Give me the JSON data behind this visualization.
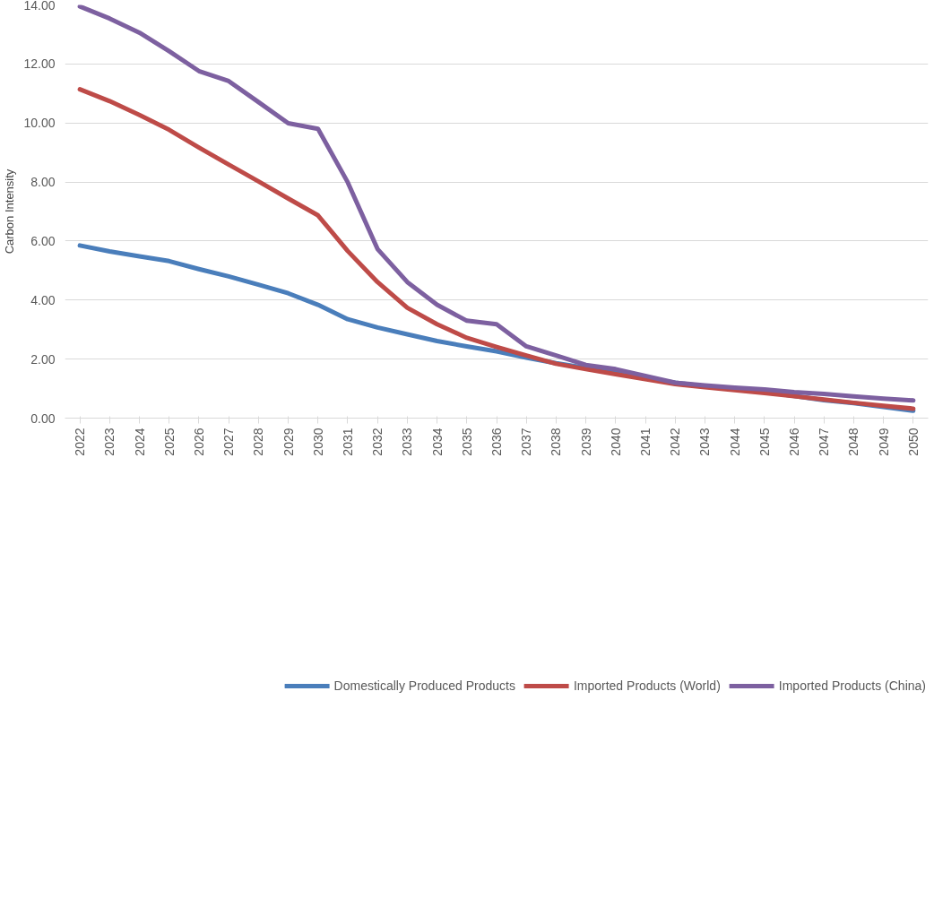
{
  "chart_data": {
    "type": "line",
    "ylabel": "Carbon Intensity",
    "categories": [
      "2022",
      "2023",
      "2024",
      "2025",
      "2026",
      "2027",
      "2028",
      "2029",
      "2030",
      "2031",
      "2032",
      "2033",
      "2034",
      "2035",
      "2036",
      "2037",
      "2038",
      "2039",
      "2040",
      "2041",
      "2042",
      "2043",
      "2044",
      "2045",
      "2046",
      "2047",
      "2048",
      "2049",
      "2050"
    ],
    "ylim": [
      0,
      14
    ],
    "yticks": [
      {
        "value": 0,
        "label": "0.00"
      },
      {
        "value": 2,
        "label": "2.00"
      },
      {
        "value": 4,
        "label": "4.00"
      },
      {
        "value": 6,
        "label": "6.00"
      },
      {
        "value": 8,
        "label": "8.00"
      },
      {
        "value": 10,
        "label": "10.00"
      },
      {
        "value": 12,
        "label": "12.00"
      },
      {
        "value": 14,
        "label": "14.00"
      }
    ],
    "grid": "y",
    "legend": "bottom",
    "line_style": "solid",
    "marker": "none",
    "series": [
      {
        "name": "Domestically Produced Products",
        "color": "#4a7ebb",
        "values": [
          5.85,
          5.65,
          5.48,
          5.32,
          5.05,
          4.8,
          4.52,
          4.23,
          3.84,
          3.35,
          3.07,
          2.84,
          2.61,
          2.43,
          2.26,
          2.05,
          1.86,
          1.7,
          1.54,
          1.35,
          1.2,
          1.08,
          0.98,
          0.89,
          0.75,
          0.61,
          0.51,
          0.38,
          0.25
        ]
      },
      {
        "name": "Imported Products (World)",
        "color": "#be4b48",
        "values": [
          11.14,
          10.74,
          10.27,
          9.77,
          9.17,
          8.59,
          8.02,
          7.44,
          6.87,
          5.66,
          4.61,
          3.74,
          3.18,
          2.72,
          2.41,
          2.12,
          1.84,
          1.66,
          1.49,
          1.32,
          1.15,
          1.05,
          0.95,
          0.85,
          0.74,
          0.63,
          0.52,
          0.42,
          0.32
        ]
      },
      {
        "name": "Imported Products (China)",
        "color": "#7d60a0",
        "values": [
          13.95,
          13.54,
          13.06,
          12.43,
          11.76,
          11.42,
          10.71,
          9.99,
          9.8,
          7.99,
          5.73,
          4.61,
          3.84,
          3.3,
          3.18,
          2.43,
          2.12,
          1.8,
          1.66,
          1.43,
          1.2,
          1.11,
          1.03,
          0.97,
          0.88,
          0.82,
          0.74,
          0.66,
          0.6
        ]
      }
    ]
  }
}
